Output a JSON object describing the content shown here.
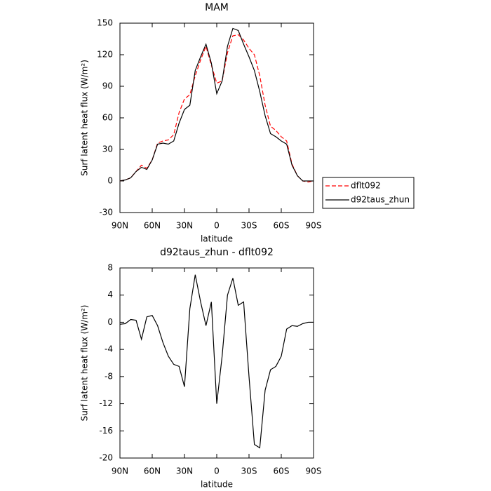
{
  "chart_data": [
    {
      "type": "line",
      "title": "MAM",
      "xlabel": "latitude",
      "ylabel": "Surf latent heat flux (W/m²)",
      "x": [
        90,
        85,
        80,
        75,
        70,
        65,
        60,
        55,
        50,
        45,
        40,
        35,
        30,
        25,
        20,
        15,
        10,
        5,
        0,
        -5,
        -10,
        -15,
        -20,
        -25,
        -30,
        -35,
        -40,
        -45,
        -50,
        -55,
        -60,
        -65,
        -70,
        -75,
        -80,
        -85,
        -90
      ],
      "series": [
        {
          "name": "dflt092",
          "color": "#ff0000",
          "dash": true,
          "values": [
            0,
            1,
            3,
            9,
            15,
            12,
            20,
            36,
            38,
            39,
            44,
            65,
            78,
            82,
            100,
            115,
            128,
            110,
            93,
            95,
            122,
            138,
            139,
            134,
            126,
            120,
            100,
            72,
            52,
            48,
            42,
            38,
            16,
            5,
            0,
            -1,
            0
          ]
        },
        {
          "name": "d92taus_zhun",
          "color": "#000000",
          "dash": false,
          "values": [
            0,
            1,
            3,
            9,
            13,
            11,
            20,
            35,
            36,
            35,
            38,
            55,
            68,
            72,
            105,
            118,
            130,
            112,
            83,
            95,
            128,
            145,
            143,
            130,
            118,
            105,
            85,
            62,
            45,
            42,
            38,
            35,
            15,
            5,
            0,
            0,
            0
          ]
        }
      ],
      "xlim": [
        90,
        -90
      ],
      "xticks": [
        {
          "value": 90,
          "label": "90N"
        },
        {
          "value": 60,
          "label": "60N"
        },
        {
          "value": 30,
          "label": "30N"
        },
        0,
        {
          "value": -30,
          "label": "30S"
        },
        {
          "value": -60,
          "label": "60S"
        },
        {
          "value": -90,
          "label": "90S"
        }
      ],
      "ylim": [
        -30,
        150
      ],
      "yticks": [
        -30,
        0,
        30,
        60,
        90,
        120,
        150
      ],
      "legend": "outside-right"
    },
    {
      "type": "line",
      "title": "d92taus_zhun - dflt092",
      "xlabel": "latitude",
      "ylabel": "Surf latent heat flux (W/m²)",
      "x": [
        90,
        85,
        80,
        75,
        70,
        65,
        60,
        55,
        50,
        45,
        40,
        35,
        30,
        25,
        20,
        15,
        10,
        5,
        0,
        -5,
        -10,
        -15,
        -20,
        -25,
        -30,
        -35,
        -40,
        -45,
        -50,
        -55,
        -60,
        -65,
        -70,
        -75,
        -80,
        -85,
        -90
      ],
      "series": [
        {
          "color": "#000000",
          "dash": false,
          "values": [
            -0.3,
            -0.2,
            0.4,
            0.3,
            -2.5,
            0.8,
            1.0,
            -0.5,
            -3,
            -5,
            -6.2,
            -6.5,
            -9.5,
            2,
            7,
            3,
            -0.5,
            3,
            -12,
            -5,
            4,
            6.5,
            2.5,
            3,
            -8,
            -18,
            -18.5,
            -10,
            -7,
            -6.5,
            -5,
            -1,
            -0.5,
            -0.6,
            -0.2,
            0,
            0
          ]
        }
      ],
      "xlim": [
        90,
        -90
      ],
      "xticks": [
        {
          "value": 90,
          "label": "90N"
        },
        {
          "value": 60,
          "label": "60N"
        },
        {
          "value": 30,
          "label": "30N"
        },
        0,
        {
          "value": -30,
          "label": "30S"
        },
        {
          "value": -60,
          "label": "60S"
        },
        {
          "value": -90,
          "label": "90S"
        }
      ],
      "ylim": [
        -20,
        8
      ],
      "yticks": [
        -20,
        -16,
        -12,
        -8,
        -4,
        0,
        4,
        8
      ]
    }
  ]
}
